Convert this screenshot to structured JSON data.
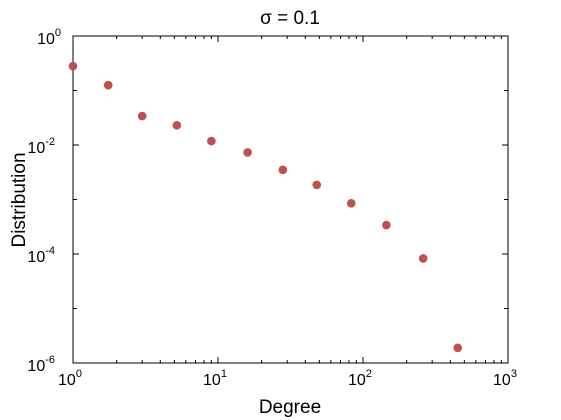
{
  "chart_data": {
    "type": "scatter",
    "title": "σ = 0.1",
    "xlabel": "Degree",
    "ylabel": "Distribution",
    "xscale": "log",
    "yscale": "log",
    "xlim": [
      1,
      1000
    ],
    "ylim": [
      1e-06,
      1
    ],
    "x_ticks": [
      {
        "base": "10",
        "exp": "0"
      },
      {
        "base": "10",
        "exp": "1"
      },
      {
        "base": "10",
        "exp": "2"
      },
      {
        "base": "10",
        "exp": "3"
      }
    ],
    "y_ticks": [
      {
        "base": "10",
        "exp": "0"
      },
      {
        "base": "10",
        "exp": "-2"
      },
      {
        "base": "10",
        "exp": "-4"
      },
      {
        "base": "10",
        "exp": "-6"
      }
    ],
    "grid": false,
    "marker_color": "#c0504d",
    "points": [
      {
        "x": 1.0,
        "y": 0.28
      },
      {
        "x": 1.75,
        "y": 0.125
      },
      {
        "x": 3.0,
        "y": 0.034
      },
      {
        "x": 5.2,
        "y": 0.023
      },
      {
        "x": 9.0,
        "y": 0.0118
      },
      {
        "x": 16.0,
        "y": 0.0073
      },
      {
        "x": 28.0,
        "y": 0.0035
      },
      {
        "x": 48.0,
        "y": 0.00185
      },
      {
        "x": 83.0,
        "y": 0.00085
      },
      {
        "x": 145.0,
        "y": 0.00034
      },
      {
        "x": 260.0,
        "y": 8.3e-05
      },
      {
        "x": 450.0,
        "y": 1.9e-06
      }
    ]
  }
}
